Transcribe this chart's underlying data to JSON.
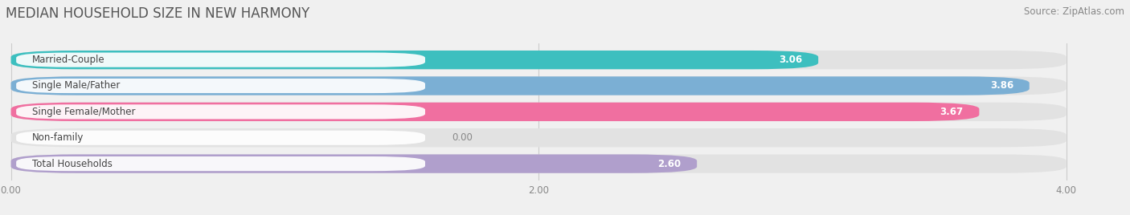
{
  "title": "MEDIAN HOUSEHOLD SIZE IN NEW HARMONY",
  "source": "Source: ZipAtlas.com",
  "categories": [
    "Married-Couple",
    "Single Male/Father",
    "Single Female/Mother",
    "Non-family",
    "Total Households"
  ],
  "values": [
    3.06,
    3.86,
    3.67,
    0.0,
    2.6
  ],
  "bar_colors": [
    "#3dbfbf",
    "#7bafd4",
    "#f06fa0",
    "#f5cfa0",
    "#b09fcc"
  ],
  "xlim_min": 0.0,
  "xlim_max": 4.0,
  "xticks": [
    0.0,
    2.0,
    4.0
  ],
  "background_color": "#f0f0f0",
  "bar_bg_color": "#e2e2e2",
  "label_bg_color": "#ffffff",
  "title_fontsize": 12,
  "label_fontsize": 8.5,
  "value_fontsize": 8.5,
  "source_fontsize": 8.5,
  "bar_height": 0.72,
  "bar_gap": 1.0,
  "rounding_size": 0.25
}
